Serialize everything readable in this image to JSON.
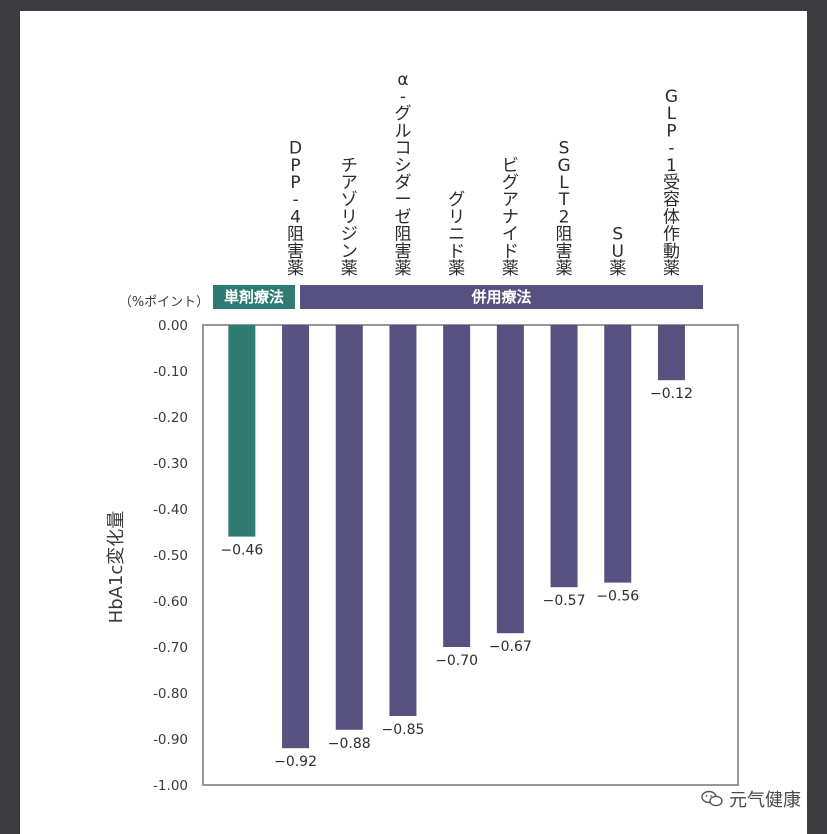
{
  "chart_data": {
    "type": "bar",
    "ylabel": "HbA1c変化量",
    "unit_label": "（%ポイント）",
    "ylim": [
      -1.0,
      0.0
    ],
    "y_ticks": [
      "0.00",
      "-0.10",
      "-0.20",
      "-0.30",
      "-0.40",
      "-0.50",
      "-0.60",
      "-0.70",
      "-0.80",
      "-0.90",
      "-1.00"
    ],
    "groups": [
      {
        "label": "単剤療法",
        "color": "#2e7b72",
        "count": 1
      },
      {
        "label": "併用療法",
        "color": "#57517f",
        "count": 8
      }
    ],
    "categories": [
      "",
      "DPP-4阻害薬",
      "チアゾリジン薬",
      "α-グルコシダーゼ阻害薬",
      "グリニド薬",
      "ビグアナイド薬",
      "SGLT2阻害薬",
      "SU薬",
      "GLP-1受容体作動薬"
    ],
    "values": [
      -0.46,
      -0.92,
      -0.88,
      -0.85,
      -0.7,
      -0.67,
      -0.57,
      -0.56,
      -0.12
    ],
    "value_labels": [
      "−0.46",
      "−0.92",
      "−0.88",
      "−0.85",
      "−0.70",
      "−0.67",
      "−0.57",
      "−0.56",
      "−0.12"
    ],
    "colors": [
      "#2e7b72",
      "#57517f",
      "#57517f",
      "#57517f",
      "#57517f",
      "#57517f",
      "#57517f",
      "#57517f",
      "#57517f"
    ]
  },
  "watermark": {
    "text": "元气健康",
    "icon": "wechat-icon"
  }
}
